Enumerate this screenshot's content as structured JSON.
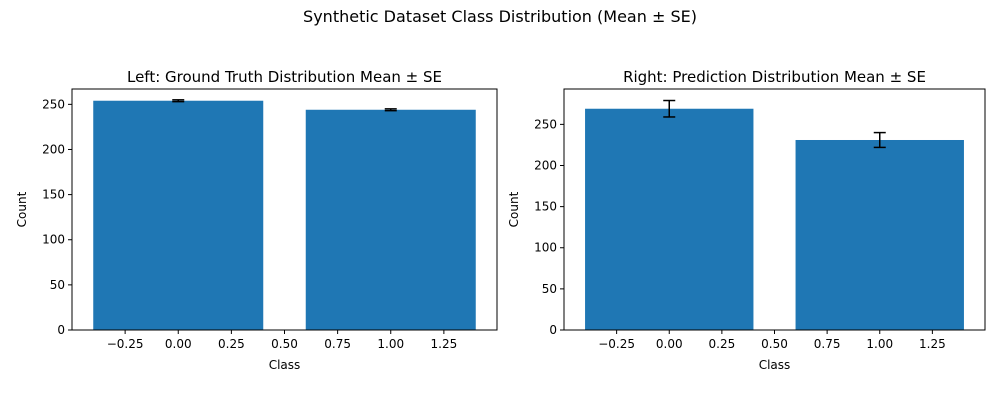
{
  "figure": {
    "suptitle": "Synthetic Dataset Class Distribution (Mean ± SE)"
  },
  "colors": {
    "bar": "#1f77b4",
    "errorbar": "#000000",
    "axis": "#000000"
  },
  "chart_data": [
    {
      "type": "bar",
      "title": "Left: Ground Truth Distribution Mean ± SE",
      "xlabel": "Class",
      "ylabel": "Count",
      "x": [
        0,
        1
      ],
      "values": [
        254,
        244
      ],
      "errors": [
        1,
        1
      ],
      "bar_width": 0.8,
      "xlim": [
        -0.5,
        1.5
      ],
      "ylim": [
        0,
        267
      ],
      "xticks": [
        -0.25,
        0.0,
        0.25,
        0.5,
        0.75,
        1.0,
        1.25
      ],
      "xtick_labels": [
        "−0.25",
        "0.00",
        "0.25",
        "0.50",
        "0.75",
        "1.00",
        "1.25"
      ],
      "yticks": [
        0,
        50,
        100,
        150,
        200,
        250
      ],
      "ytick_labels": [
        "0",
        "50",
        "100",
        "150",
        "200",
        "250"
      ],
      "grid": false,
      "legend": false
    },
    {
      "type": "bar",
      "title": "Right: Prediction Distribution Mean ± SE",
      "xlabel": "Class",
      "ylabel": "Count",
      "x": [
        0,
        1
      ],
      "values": [
        269,
        231
      ],
      "errors": [
        10,
        9
      ],
      "bar_width": 0.8,
      "xlim": [
        -0.5,
        1.5
      ],
      "ylim": [
        0,
        293
      ],
      "xticks": [
        -0.25,
        0.0,
        0.25,
        0.5,
        0.75,
        1.0,
        1.25
      ],
      "xtick_labels": [
        "−0.25",
        "0.00",
        "0.25",
        "0.50",
        "0.75",
        "1.00",
        "1.25"
      ],
      "yticks": [
        0,
        50,
        100,
        150,
        200,
        250
      ],
      "ytick_labels": [
        "0",
        "50",
        "100",
        "150",
        "200",
        "250"
      ],
      "grid": false,
      "legend": false
    }
  ]
}
